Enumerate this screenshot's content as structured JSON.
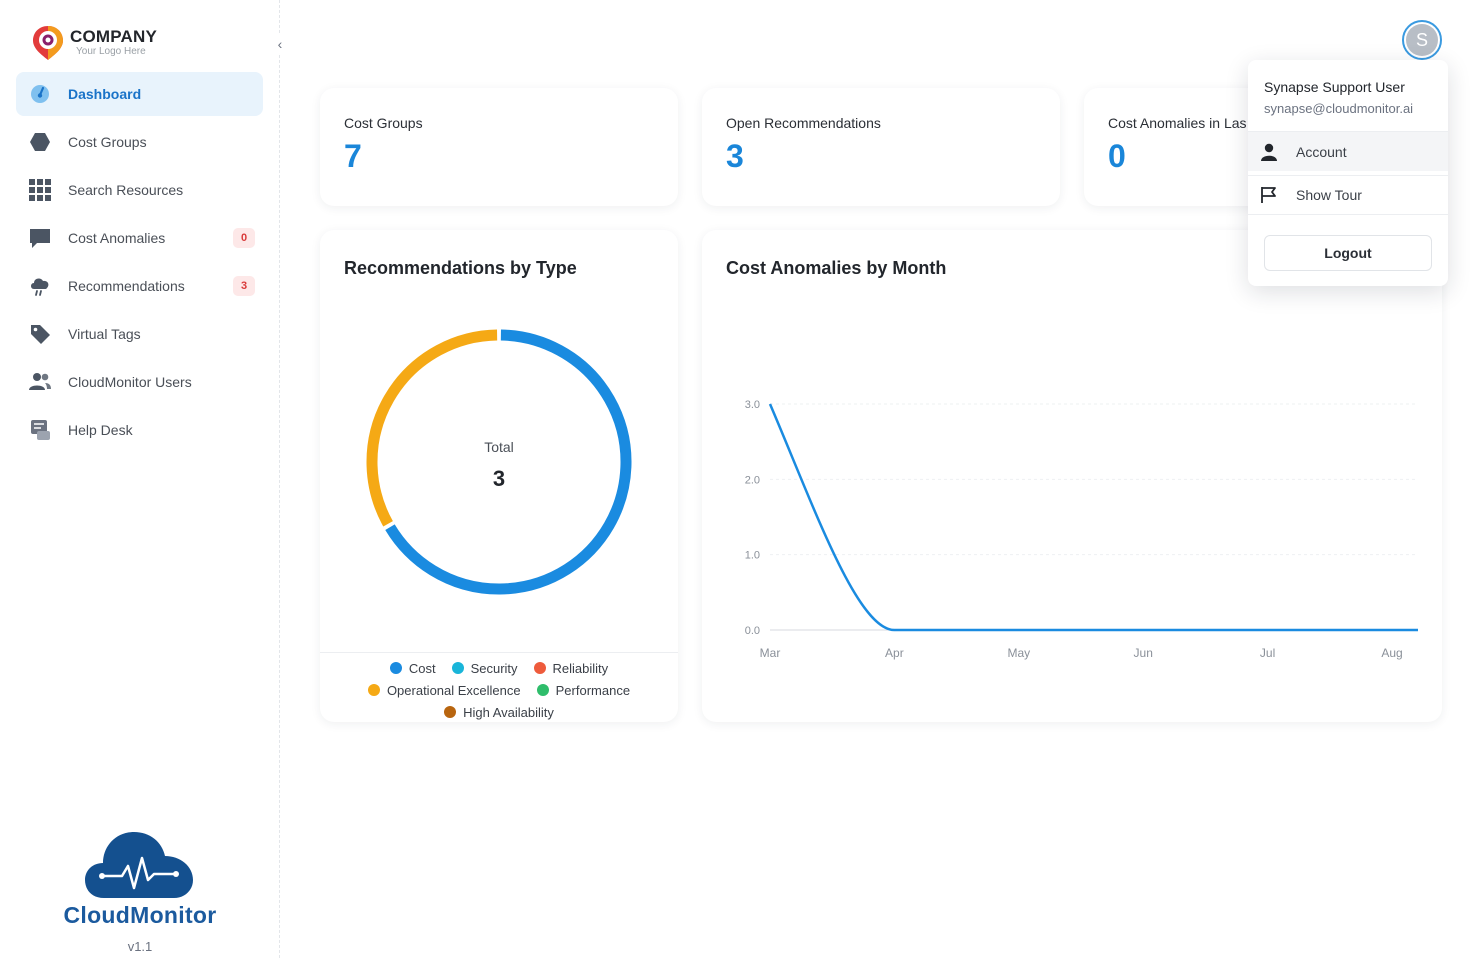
{
  "logo": {
    "company": "COMPANY",
    "tagline": "Your Logo Here"
  },
  "sidebar": {
    "items": [
      {
        "label": "Dashboard",
        "icon": "gauge-icon",
        "active": true
      },
      {
        "label": "Cost Groups",
        "icon": "hexagon-icon"
      },
      {
        "label": "Search Resources",
        "icon": "grid-icon"
      },
      {
        "label": "Cost Anomalies",
        "icon": "chat-bubble-icon",
        "badge": "0"
      },
      {
        "label": "Recommendations",
        "icon": "cloud-rain-icon",
        "badge": "3"
      },
      {
        "label": "Virtual Tags",
        "icon": "tag-icon"
      },
      {
        "label": "CloudMonitor Users",
        "icon": "users-icon"
      },
      {
        "label": "Help Desk",
        "icon": "helpdesk-icon"
      }
    ],
    "brand_name": "CloudMonitor",
    "version": "v1.1"
  },
  "stats": [
    {
      "title": "Cost Groups",
      "value": "7"
    },
    {
      "title": "Open Recommendations",
      "value": "3"
    },
    {
      "title": "Cost Anomalies in Las",
      "value": "0"
    }
  ],
  "donut": {
    "title": "Recommendations by Type",
    "center_label": "Total",
    "center_value": "3",
    "legend": [
      {
        "name": "Cost",
        "color": "#1a8be0"
      },
      {
        "name": "Security",
        "color": "#19b5d9"
      },
      {
        "name": "Reliability",
        "color": "#ee5b3c"
      },
      {
        "name": "Operational Excellence",
        "color": "#f5a915"
      },
      {
        "name": "Performance",
        "color": "#2fbd6b"
      },
      {
        "name": "High Availability",
        "color": "#b8650f"
      }
    ]
  },
  "line_panel": {
    "title": "Cost Anomalies by Month"
  },
  "user_menu": {
    "avatar_letter": "S",
    "name": "Synapse Support User",
    "email": "synapse@cloudmonitor.ai",
    "items": [
      {
        "label": "Account",
        "icon": "person-icon"
      },
      {
        "label": "Show Tour",
        "icon": "flag-icon"
      }
    ],
    "logout_label": "Logout"
  },
  "chart_data": [
    {
      "type": "pie",
      "title": "Recommendations by Type",
      "categories": [
        "Cost",
        "Security",
        "Reliability",
        "Operational Excellence",
        "Performance",
        "High Availability"
      ],
      "values": [
        2,
        0,
        0,
        1,
        0,
        0
      ],
      "colors": [
        "#1a8be0",
        "#19b5d9",
        "#ee5b3c",
        "#f5a915",
        "#2fbd6b",
        "#b8650f"
      ],
      "center_text": "Total 3",
      "legend": "bottom"
    },
    {
      "type": "line",
      "title": "Cost Anomalies by Month",
      "categories": [
        "Mar",
        "Apr",
        "May",
        "Jun",
        "Jul",
        "Aug"
      ],
      "values": [
        3,
        0,
        0,
        0,
        0,
        0
      ],
      "yticks": [
        "0.0",
        "1.0",
        "2.0",
        "3.0"
      ],
      "ylim": [
        0,
        3
      ],
      "grid": true,
      "color": "#1a8be0"
    }
  ]
}
